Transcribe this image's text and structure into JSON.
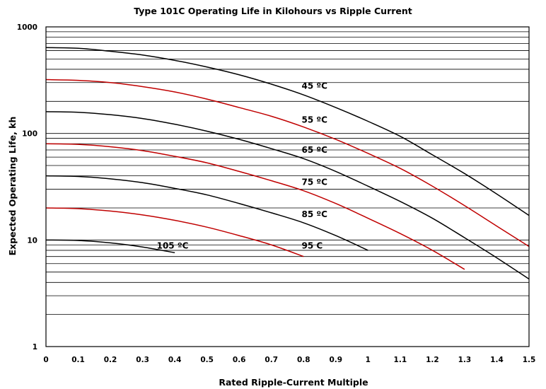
{
  "chart_data": {
    "type": "line",
    "title": "Type 101C Operating Life in Kilohours vs Ripple Current",
    "xlabel": "Rated Ripple-Current Multiple",
    "ylabel": "Expected Operating Life, kh",
    "xlim": [
      0,
      1.5
    ],
    "ylim": [
      1,
      1000
    ],
    "yscale": "log",
    "grid": "horizontal",
    "x_ticks": [
      "0",
      "0.1",
      "0.2",
      "0.3",
      "0.4",
      "0.5",
      "0.6",
      "0.7",
      "0.8",
      "0.9",
      "1",
      "1.1",
      "1.2",
      "1.3",
      "1.4",
      "1.5"
    ],
    "y_ticks": [
      {
        "value": 1,
        "label": "1"
      },
      {
        "value": 10,
        "label": "10"
      },
      {
        "value": 100,
        "label": "100"
      },
      {
        "value": 1000,
        "label": "1000"
      }
    ],
    "colors": {
      "black": "#000000",
      "red": "#c00000"
    },
    "series": [
      {
        "name": "45 °C",
        "label_text": "45 ºC",
        "color": "#000000",
        "label_at": [
          0.75,
          240
        ],
        "x": [
          0,
          0.1,
          0.2,
          0.3,
          0.4,
          0.5,
          0.6,
          0.7,
          0.8,
          0.9,
          1.0,
          1.1,
          1.2,
          1.3,
          1.4,
          1.5
        ],
        "y": [
          640,
          630,
          590,
          545,
          485,
          420,
          355,
          290,
          230,
          175,
          130,
          94,
          63,
          42,
          27,
          17
        ]
      },
      {
        "name": "55 °C",
        "label_text": "55 ºC",
        "color": "#c00000",
        "label_at": [
          0.75,
          115
        ],
        "x": [
          0,
          0.1,
          0.2,
          0.3,
          0.4,
          0.5,
          0.6,
          0.7,
          0.8,
          0.9,
          1.0,
          1.1,
          1.2,
          1.3,
          1.4,
          1.5
        ],
        "y": [
          320,
          315,
          300,
          275,
          245,
          210,
          175,
          145,
          115,
          88,
          65,
          47,
          32,
          21,
          13.5,
          8.7
        ]
      },
      {
        "name": "65 °C",
        "label_text": "65 ºC",
        "color": "#000000",
        "label_at": [
          0.75,
          60
        ],
        "x": [
          0,
          0.1,
          0.2,
          0.3,
          0.4,
          0.5,
          0.6,
          0.7,
          0.8,
          0.9,
          1.0,
          1.1,
          1.2,
          1.3,
          1.4,
          1.5
        ],
        "y": [
          160,
          158,
          150,
          138,
          122,
          105,
          88,
          72,
          58,
          44,
          32,
          23,
          16,
          10.5,
          6.8,
          4.3
        ]
      },
      {
        "name": "75 °C",
        "label_text": "75 ºC",
        "color": "#c00000",
        "label_at": [
          0.75,
          30
        ],
        "x": [
          0,
          0.1,
          0.2,
          0.3,
          0.4,
          0.5,
          0.6,
          0.7,
          0.8,
          0.9,
          1.0,
          1.1,
          1.2,
          1.3
        ],
        "y": [
          80,
          79,
          75,
          69,
          61,
          53,
          44,
          36,
          29,
          22,
          16,
          11.5,
          8,
          5.3
        ]
      },
      {
        "name": "85 °C",
        "label_text": "85 ºC",
        "color": "#000000",
        "label_at": [
          0.75,
          15
        ],
        "x": [
          0,
          0.1,
          0.2,
          0.3,
          0.4,
          0.5,
          0.6,
          0.7,
          0.8,
          0.9,
          1.0
        ],
        "y": [
          40,
          39.5,
          37.5,
          34.5,
          30.5,
          26.5,
          22,
          18,
          14.5,
          11,
          8
        ]
      },
      {
        "name": "95 °C",
        "label_text": "95  C",
        "color": "#c00000",
        "label_at": [
          0.75,
          7.6
        ],
        "x": [
          0,
          0.1,
          0.2,
          0.3,
          0.4,
          0.5,
          0.6,
          0.7,
          0.8
        ],
        "y": [
          20,
          19.7,
          18.7,
          17.2,
          15.3,
          13.2,
          11,
          9,
          7
        ]
      },
      {
        "name": "105 °C",
        "label_text": "105 ºC",
        "color": "#000000",
        "label_at": [
          0.3,
          7.6
        ],
        "x": [
          0,
          0.1,
          0.2,
          0.3,
          0.4
        ],
        "y": [
          10,
          9.9,
          9.4,
          8.6,
          7.6
        ]
      }
    ]
  }
}
